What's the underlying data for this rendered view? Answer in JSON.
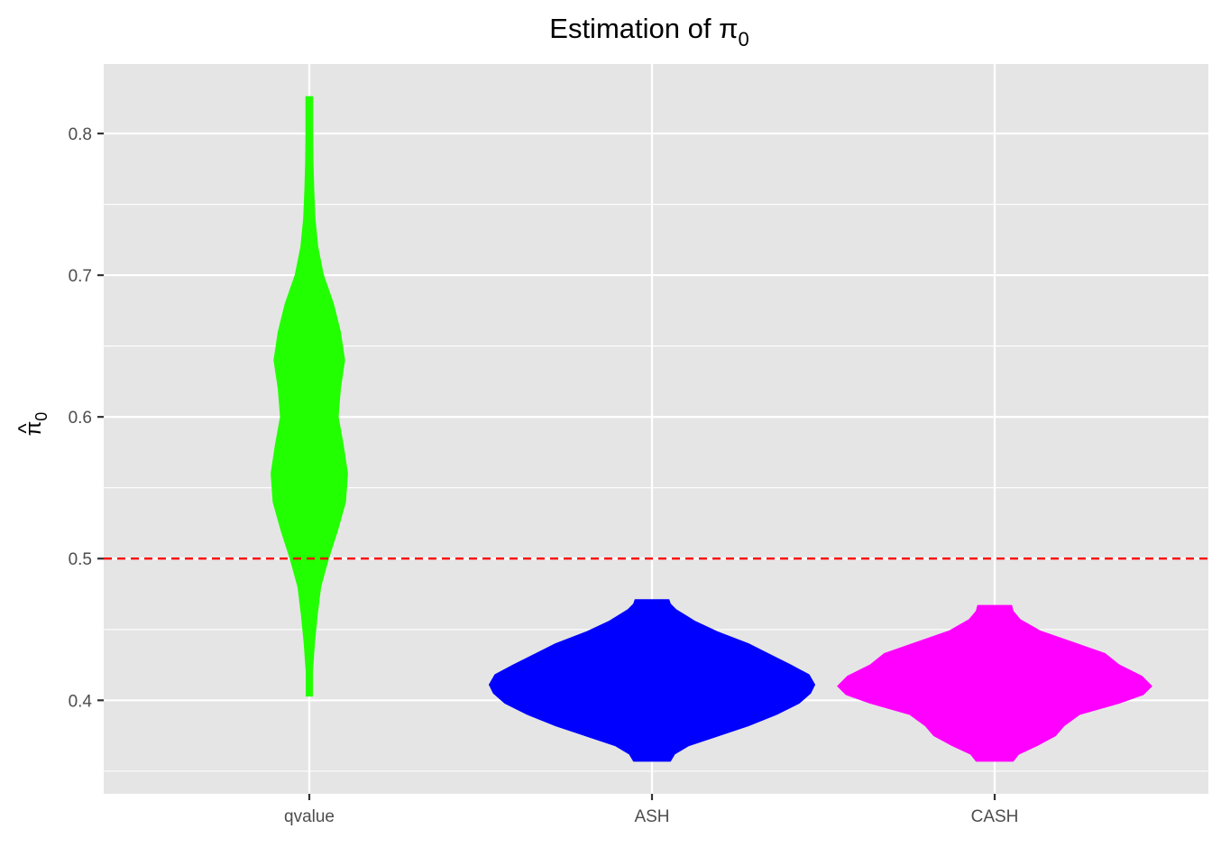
{
  "chart_data": {
    "type": "violin",
    "title": "Estimation of π",
    "title_subscript": "0",
    "xlabel": "",
    "ylabel": "π",
    "ylabel_subscript": "0",
    "ylabel_accent": "^",
    "ylim": [
      0.334,
      0.849
    ],
    "yticks": [
      "0.4",
      "0.5",
      "0.6",
      "0.7",
      "0.8"
    ],
    "categories": [
      "qvalue",
      "ASH",
      "CASH"
    ],
    "reference_line": {
      "y": 0.5,
      "color": "#ff0000",
      "style": "dashed"
    },
    "grid": true,
    "panel_color": "#e5e5e5",
    "series": [
      {
        "category": "qvalue",
        "color": "#22ff00",
        "min": 0.403,
        "max": 0.826,
        "density": [
          [
            0.403,
            0.011
          ],
          [
            0.42,
            0.011
          ],
          [
            0.44,
            0.018
          ],
          [
            0.46,
            0.028
          ],
          [
            0.48,
            0.04
          ],
          [
            0.5,
            0.068
          ],
          [
            0.52,
            0.1
          ],
          [
            0.54,
            0.128
          ],
          [
            0.56,
            0.135
          ],
          [
            0.58,
            0.12
          ],
          [
            0.6,
            0.102
          ],
          [
            0.62,
            0.11
          ],
          [
            0.64,
            0.125
          ],
          [
            0.66,
            0.11
          ],
          [
            0.68,
            0.085
          ],
          [
            0.7,
            0.05
          ],
          [
            0.72,
            0.03
          ],
          [
            0.74,
            0.02
          ],
          [
            0.76,
            0.016
          ],
          [
            0.78,
            0.013
          ],
          [
            0.8,
            0.012
          ],
          [
            0.826,
            0.012
          ]
        ]
      },
      {
        "category": "ASH",
        "color": "#0000ff",
        "min": 0.357,
        "max": 0.471,
        "density": [
          [
            0.357,
            0.065
          ],
          [
            0.362,
            0.08
          ],
          [
            0.368,
            0.13
          ],
          [
            0.375,
            0.235
          ],
          [
            0.382,
            0.34
          ],
          [
            0.39,
            0.44
          ],
          [
            0.398,
            0.52
          ],
          [
            0.405,
            0.56
          ],
          [
            0.411,
            0.575
          ],
          [
            0.418,
            0.555
          ],
          [
            0.425,
            0.49
          ],
          [
            0.432,
            0.42
          ],
          [
            0.44,
            0.34
          ],
          [
            0.448,
            0.235
          ],
          [
            0.456,
            0.15
          ],
          [
            0.464,
            0.085
          ],
          [
            0.468,
            0.065
          ],
          [
            0.471,
            0.06
          ]
        ]
      },
      {
        "category": "CASH",
        "color": "#ff00ff",
        "min": 0.357,
        "max": 0.467,
        "density": [
          [
            0.357,
            0.065
          ],
          [
            0.362,
            0.085
          ],
          [
            0.368,
            0.15
          ],
          [
            0.375,
            0.215
          ],
          [
            0.382,
            0.245
          ],
          [
            0.39,
            0.3
          ],
          [
            0.398,
            0.44
          ],
          [
            0.404,
            0.525
          ],
          [
            0.41,
            0.555
          ],
          [
            0.417,
            0.52
          ],
          [
            0.425,
            0.44
          ],
          [
            0.433,
            0.39
          ],
          [
            0.441,
            0.275
          ],
          [
            0.449,
            0.16
          ],
          [
            0.457,
            0.09
          ],
          [
            0.463,
            0.065
          ],
          [
            0.467,
            0.06
          ]
        ]
      }
    ]
  }
}
